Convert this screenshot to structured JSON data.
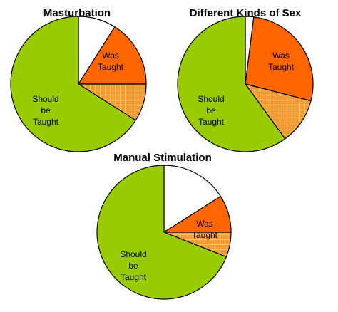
{
  "chart_data": [
    {
      "type": "pie",
      "title": "Masturbation",
      "slices": [
        {
          "label": "",
          "value": 9,
          "fill": "white"
        },
        {
          "label": "Was Taught",
          "value": 16,
          "fill": "orange"
        },
        {
          "label": "",
          "value": 9,
          "fill": "hatch"
        },
        {
          "label": "Should be Taught",
          "value": 66,
          "fill": "green"
        }
      ]
    },
    {
      "type": "pie",
      "title": "Different Kinds of Sex",
      "slices": [
        {
          "label": "",
          "value": 2,
          "fill": "white"
        },
        {
          "label": "Was Taught",
          "value": 27,
          "fill": "orange"
        },
        {
          "label": "",
          "value": 11,
          "fill": "hatch"
        },
        {
          "label": "Should be Taught",
          "value": 60,
          "fill": "green"
        }
      ]
    },
    {
      "type": "pie",
      "title": "Manual Stimulation",
      "slices": [
        {
          "label": "",
          "value": 16,
          "fill": "white"
        },
        {
          "label": "Was Taught",
          "value": 9,
          "fill": "orange"
        },
        {
          "label": "",
          "value": 6,
          "fill": "hatch"
        },
        {
          "label": "Should be Taught",
          "value": 69,
          "fill": "green"
        }
      ]
    }
  ],
  "colors": {
    "green": "#99cc00",
    "orange": "#ff6600",
    "white": "#ffffff",
    "hatch_bg": "#ff9933",
    "hatch_line": "#ffcc66",
    "stroke": "#000000"
  }
}
